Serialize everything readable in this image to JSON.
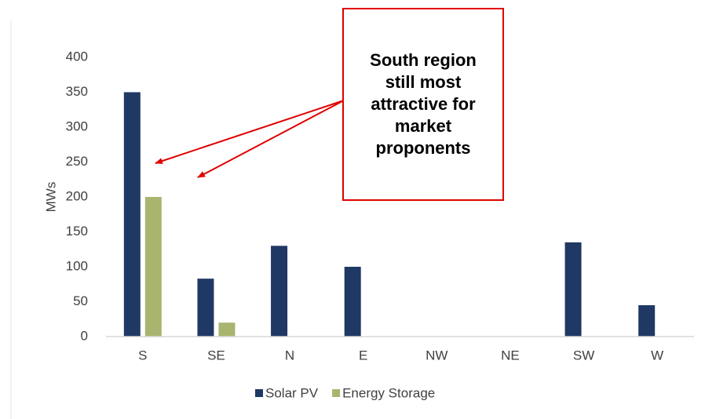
{
  "chart_data": {
    "type": "bar",
    "categories": [
      "S",
      "SE",
      "N",
      "E",
      "NW",
      "NE",
      "SW",
      "W"
    ],
    "series": [
      {
        "name": "Solar PV",
        "values": [
          350,
          83,
          130,
          100,
          0,
          0,
          135,
          45
        ],
        "color": "#1f3864"
      },
      {
        "name": "Energy Storage",
        "values": [
          200,
          20,
          0,
          0,
          0,
          0,
          0,
          0
        ],
        "color": "#a9b46e"
      }
    ],
    "ylabel": "MWs",
    "ylim": [
      0,
      400
    ],
    "yticks": [
      0,
      50,
      100,
      150,
      200,
      250,
      300,
      350,
      400
    ],
    "grid": false,
    "legend": "bottom",
    "annotation": {
      "text": "South region still most attractive for market proponents",
      "border_color": "#e00000",
      "arrow_color": "#e00000"
    }
  }
}
